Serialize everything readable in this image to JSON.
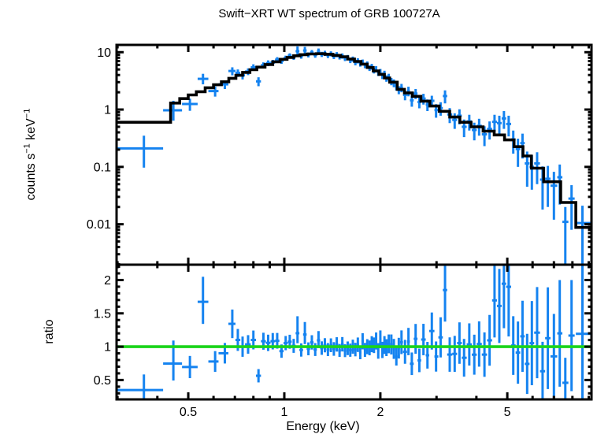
{
  "title": "Swift−XRT WT spectrum of GRB 100727A",
  "colors": {
    "data": "#1583f0",
    "model": "#000000",
    "ratio_line": "#1ad41a",
    "axis": "#000000",
    "background": "#ffffff"
  },
  "labels": {
    "ylabel_top": {
      "base1": "counts s",
      "sup1": "−1",
      "base2": " keV",
      "sup2": "−1"
    },
    "ylabel_bottom": "ratio",
    "xlabel": "Energy (keV)"
  },
  "x_axis": {
    "scale": "log",
    "major_ticks": [
      0.5,
      1,
      2,
      5
    ],
    "major_labels": [
      "0.5",
      "1",
      "2",
      "5"
    ],
    "minor_ticks": [
      0.3,
      0.4,
      0.6,
      0.7,
      0.8,
      0.9,
      3,
      4,
      6,
      7,
      8,
      9
    ]
  },
  "chart_data": [
    {
      "type": "scatter",
      "name": "spectrum",
      "x_scale": "log",
      "y_scale": "log",
      "xlim": [
        0.298,
        9.18
      ],
      "ylim": [
        0.00197,
        13.4
      ],
      "ylabel": "counts s−1 keV−1",
      "y_major_ticks": [
        0.01,
        0.1,
        1,
        10
      ],
      "y_major_labels": [
        "0.01",
        "0.1",
        "1",
        "10"
      ],
      "y_minor_ticks": [
        0.002,
        0.003,
        0.004,
        0.005,
        0.006,
        0.007,
        0.008,
        0.009,
        0.02,
        0.03,
        0.04,
        0.05,
        0.06,
        0.07,
        0.08,
        0.09,
        0.2,
        0.3,
        0.4,
        0.5,
        0.6,
        0.7,
        0.8,
        0.9,
        2,
        3,
        4,
        5,
        6,
        7,
        8,
        9
      ],
      "model_bins": [
        [
          0.298,
          0.44,
          0.6
        ],
        [
          0.44,
          0.47,
          1.3
        ],
        [
          0.47,
          0.5,
          1.55
        ],
        [
          0.5,
          0.53,
          1.8
        ],
        [
          0.53,
          0.565,
          2.05
        ],
        [
          0.565,
          0.6,
          2.4
        ],
        [
          0.6,
          0.635,
          2.7
        ],
        [
          0.635,
          0.67,
          3.05
        ],
        [
          0.67,
          0.705,
          3.5
        ],
        [
          0.705,
          0.74,
          3.95
        ],
        [
          0.74,
          0.78,
          4.45
        ],
        [
          0.78,
          0.82,
          4.95
        ],
        [
          0.82,
          0.87,
          5.5
        ],
        [
          0.87,
          0.92,
          6.1
        ],
        [
          0.92,
          0.97,
          6.8
        ],
        [
          0.97,
          1.02,
          7.5
        ],
        [
          1.02,
          1.07,
          8.1
        ],
        [
          1.07,
          1.12,
          8.65
        ],
        [
          1.12,
          1.18,
          9.05
        ],
        [
          1.18,
          1.26,
          9.3
        ],
        [
          1.26,
          1.34,
          9.4
        ],
        [
          1.34,
          1.42,
          9.2
        ],
        [
          1.42,
          1.5,
          8.8
        ],
        [
          1.5,
          1.58,
          8.3
        ],
        [
          1.58,
          1.66,
          7.6
        ],
        [
          1.66,
          1.74,
          6.9
        ],
        [
          1.74,
          1.82,
          6.2
        ],
        [
          1.82,
          1.9,
          5.4
        ],
        [
          1.9,
          1.98,
          4.7
        ],
        [
          1.98,
          2.06,
          4.1
        ],
        [
          2.06,
          2.14,
          3.55
        ],
        [
          2.14,
          2.26,
          3.0
        ],
        [
          2.26,
          2.38,
          2.25
        ],
        [
          2.38,
          2.52,
          1.95
        ],
        [
          2.52,
          2.68,
          1.7
        ],
        [
          2.68,
          2.86,
          1.4
        ],
        [
          2.86,
          3.06,
          1.15
        ],
        [
          3.06,
          3.3,
          0.93
        ],
        [
          3.3,
          3.55,
          0.74
        ],
        [
          3.55,
          3.85,
          0.6
        ],
        [
          3.85,
          4.2,
          0.5
        ],
        [
          4.2,
          4.55,
          0.42
        ],
        [
          4.55,
          4.9,
          0.36
        ],
        [
          4.9,
          5.25,
          0.295
        ],
        [
          5.25,
          5.6,
          0.225
        ],
        [
          5.6,
          5.95,
          0.155
        ],
        [
          5.95,
          6.5,
          0.095
        ],
        [
          6.5,
          7.35,
          0.055
        ],
        [
          7.35,
          8.2,
          0.024
        ],
        [
          8.2,
          9.18,
          0.0088
        ]
      ],
      "points_format": "[E, E_lo, E_hi, value, value_lo, value_hi]",
      "points": [
        [
          0.363,
          0.298,
          0.417,
          0.21,
          0.097,
          0.35
        ],
        [
          0.449,
          0.417,
          0.478,
          0.97,
          0.64,
          1.42
        ],
        [
          0.506,
          0.478,
          0.535,
          1.25,
          0.95,
          1.55
        ],
        [
          0.556,
          0.535,
          0.578,
          3.43,
          2.75,
          4.2
        ],
        [
          0.607,
          0.578,
          0.622,
          2.1,
          1.68,
          2.52
        ],
        [
          0.651,
          0.622,
          0.668,
          2.75,
          2.28,
          3.22
        ],
        [
          0.687,
          0.668,
          0.703,
          4.7,
          3.95,
          5.45
        ],
        [
          0.715,
          0.703,
          0.728,
          4.35,
          3.7,
          5.0
        ],
        [
          0.74,
          0.728,
          0.753,
          3.95,
          3.35,
          4.55
        ],
        [
          0.77,
          0.753,
          0.785,
          4.6,
          3.98,
          5.22
        ],
        [
          0.8,
          0.785,
          0.815,
          5.45,
          4.75,
          6.15
        ],
        [
          0.83,
          0.815,
          0.845,
          3.1,
          2.55,
          3.65
        ],
        [
          0.86,
          0.845,
          0.875,
          5.95,
          5.25,
          6.65
        ],
        [
          0.89,
          0.875,
          0.905,
          6.45,
          5.7,
          7.2
        ],
        [
          0.92,
          0.905,
          0.935,
          6.6,
          5.85,
          7.35
        ],
        [
          0.95,
          0.935,
          0.965,
          7.4,
          6.6,
          8.2
        ],
        [
          0.98,
          0.965,
          0.995,
          7.0,
          6.25,
          7.75
        ],
        [
          1.01,
          0.995,
          1.025,
          7.9,
          7.1,
          8.7
        ],
        [
          1.04,
          1.025,
          1.055,
          8.7,
          7.85,
          9.55
        ],
        [
          1.07,
          1.055,
          1.085,
          8.2,
          7.35,
          9.05
        ],
        [
          1.1,
          1.085,
          1.115,
          10.4,
          9.1,
          12.6
        ],
        [
          1.13,
          1.115,
          1.145,
          8.6,
          7.7,
          9.5
        ],
        [
          1.16,
          1.145,
          1.175,
          10.7,
          9.4,
          12.4
        ],
        [
          1.19,
          1.175,
          1.205,
          9.0,
          8.1,
          9.9
        ],
        [
          1.22,
          1.205,
          1.235,
          9.9,
          8.9,
          10.9
        ],
        [
          1.25,
          1.235,
          1.265,
          8.9,
          8.0,
          9.8
        ],
        [
          1.28,
          1.265,
          1.295,
          10.3,
          9.2,
          11.6
        ],
        [
          1.31,
          1.295,
          1.325,
          9.2,
          8.25,
          10.15
        ],
        [
          1.34,
          1.325,
          1.355,
          9.6,
          8.6,
          10.6
        ],
        [
          1.37,
          1.355,
          1.385,
          8.8,
          7.9,
          9.7
        ],
        [
          1.4,
          1.385,
          1.415,
          9.4,
          8.45,
          10.35
        ],
        [
          1.43,
          1.415,
          1.445,
          8.5,
          7.6,
          9.4
        ],
        [
          1.46,
          1.445,
          1.475,
          9.1,
          8.15,
          10.05
        ],
        [
          1.49,
          1.475,
          1.505,
          8.3,
          7.45,
          9.15
        ],
        [
          1.52,
          1.505,
          1.535,
          8.6,
          7.7,
          9.5
        ],
        [
          1.55,
          1.535,
          1.565,
          7.8,
          7.0,
          8.6
        ],
        [
          1.58,
          1.565,
          1.595,
          8.1,
          7.25,
          8.95
        ],
        [
          1.61,
          1.595,
          1.625,
          7.2,
          6.45,
          7.95
        ],
        [
          1.64,
          1.625,
          1.655,
          7.6,
          6.8,
          8.4
        ],
        [
          1.67,
          1.655,
          1.685,
          6.6,
          5.9,
          7.3
        ],
        [
          1.7,
          1.685,
          1.715,
          7.1,
          6.35,
          7.85
        ],
        [
          1.73,
          1.715,
          1.745,
          6.3,
          5.6,
          7.0
        ],
        [
          1.76,
          1.745,
          1.775,
          6.7,
          5.95,
          7.45
        ],
        [
          1.79,
          1.775,
          1.805,
          5.9,
          5.25,
          6.55
        ],
        [
          1.82,
          1.805,
          1.835,
          6.2,
          5.5,
          6.9
        ],
        [
          1.85,
          1.835,
          1.865,
          5.3,
          4.7,
          5.9
        ],
        [
          1.88,
          1.865,
          1.895,
          5.6,
          4.95,
          6.25
        ],
        [
          1.91,
          1.895,
          1.925,
          4.8,
          4.25,
          5.35
        ],
        [
          1.94,
          1.925,
          1.955,
          5.1,
          4.5,
          5.7
        ],
        [
          1.97,
          1.955,
          1.985,
          4.4,
          3.85,
          4.95
        ],
        [
          2.0,
          1.985,
          2.015,
          4.55,
          4.0,
          5.1
        ],
        [
          2.03,
          2.015,
          2.045,
          3.9,
          3.4,
          4.4
        ],
        [
          2.06,
          2.045,
          2.075,
          4.2,
          3.65,
          4.75
        ],
        [
          2.09,
          2.075,
          2.105,
          3.5,
          3.05,
          3.95
        ],
        [
          2.125,
          2.105,
          2.145,
          3.7,
          3.2,
          4.2
        ],
        [
          2.165,
          2.145,
          2.185,
          3.1,
          2.65,
          3.55
        ],
        [
          2.205,
          2.185,
          2.225,
          2.9,
          2.45,
          3.35
        ],
        [
          2.245,
          2.225,
          2.265,
          2.55,
          2.15,
          2.95
        ],
        [
          2.285,
          2.265,
          2.305,
          2.2,
          1.85,
          2.55
        ],
        [
          2.33,
          2.305,
          2.355,
          2.4,
          2.0,
          2.8
        ],
        [
          2.39,
          2.355,
          2.425,
          1.8,
          1.45,
          2.15
        ],
        [
          2.45,
          2.425,
          2.475,
          2.1,
          1.7,
          2.5
        ],
        [
          2.51,
          2.475,
          2.545,
          1.45,
          1.12,
          1.78
        ],
        [
          2.58,
          2.545,
          2.615,
          1.9,
          1.52,
          2.28
        ],
        [
          2.65,
          2.615,
          2.685,
          1.35,
          1.05,
          1.65
        ],
        [
          2.73,
          2.685,
          2.775,
          1.55,
          1.22,
          1.88
        ],
        [
          2.81,
          2.775,
          2.845,
          1.22,
          0.94,
          1.5
        ],
        [
          2.9,
          2.845,
          2.955,
          1.42,
          1.1,
          1.74
        ],
        [
          2.99,
          2.955,
          3.04,
          0.98,
          0.72,
          1.24
        ],
        [
          3.09,
          3.04,
          3.14,
          1.06,
          0.78,
          1.34
        ],
        [
          3.19,
          3.14,
          3.24,
          1.72,
          1.28,
          2.16
        ],
        [
          3.3,
          3.24,
          3.36,
          0.82,
          0.58,
          1.06
        ],
        [
          3.42,
          3.36,
          3.48,
          0.66,
          0.46,
          0.86
        ],
        [
          3.54,
          3.48,
          3.6,
          0.78,
          0.55,
          1.01
        ],
        [
          3.66,
          3.6,
          3.73,
          0.5,
          0.33,
          0.67
        ],
        [
          3.8,
          3.73,
          3.87,
          0.62,
          0.43,
          0.81
        ],
        [
          3.94,
          3.87,
          4.01,
          0.44,
          0.29,
          0.59
        ],
        [
          4.08,
          4.01,
          4.16,
          0.52,
          0.35,
          0.69
        ],
        [
          4.24,
          4.16,
          4.32,
          0.37,
          0.23,
          0.51
        ],
        [
          4.4,
          4.32,
          4.48,
          0.46,
          0.3,
          0.62
        ],
        [
          4.56,
          4.48,
          4.64,
          0.61,
          0.41,
          0.81
        ],
        [
          4.72,
          4.64,
          4.8,
          0.58,
          0.38,
          0.78
        ],
        [
          4.88,
          4.8,
          4.96,
          0.7,
          0.46,
          0.94
        ],
        [
          5.05,
          4.96,
          5.14,
          0.56,
          0.34,
          0.78
        ],
        [
          5.22,
          5.14,
          5.31,
          0.3,
          0.17,
          0.43
        ],
        [
          5.4,
          5.31,
          5.49,
          0.205,
          0.1,
          0.31
        ],
        [
          5.58,
          5.49,
          5.67,
          0.26,
          0.14,
          0.38
        ],
        [
          5.77,
          5.67,
          5.87,
          0.115,
          0.045,
          0.185
        ],
        [
          5.97,
          5.87,
          6.07,
          0.1,
          0.04,
          0.16
        ],
        [
          6.2,
          6.07,
          6.33,
          0.115,
          0.05,
          0.18
        ],
        [
          6.45,
          6.33,
          6.57,
          0.06,
          0.018,
          0.102
        ],
        [
          6.7,
          6.57,
          6.83,
          0.062,
          0.02,
          0.104
        ],
        [
          7.0,
          6.83,
          7.17,
          0.047,
          0.012,
          0.082
        ],
        [
          7.3,
          7.17,
          7.44,
          0.066,
          0.022,
          0.11
        ],
        [
          7.6,
          7.44,
          7.77,
          0.011,
          0.002,
          0.02
        ],
        [
          7.95,
          7.77,
          8.13,
          0.028,
          0.008,
          0.048
        ],
        [
          8.6,
          8.2,
          9.18,
          0.0105,
          0.001,
          0.021
        ]
      ]
    },
    {
      "type": "scatter",
      "name": "ratio",
      "x_scale": "log",
      "y_scale": "linear",
      "xlim": [
        0.298,
        9.18
      ],
      "ylim": [
        0.209,
        2.23
      ],
      "ylabel": "ratio",
      "y_major_ticks": [
        0.5,
        1,
        1.5,
        2
      ],
      "y_major_labels": [
        "0.5",
        "1",
        "1.5",
        "2"
      ],
      "y_minor_ticks": [
        0.3,
        0.4,
        0.6,
        0.7,
        0.8,
        0.9,
        1.1,
        1.2,
        1.3,
        1.4,
        1.6,
        1.7,
        1.8,
        1.9,
        2.1,
        2.2
      ],
      "ref_line": 1.0,
      "points_note": "ratio points = spectrum points divided by model_bins value at same energy"
    }
  ]
}
